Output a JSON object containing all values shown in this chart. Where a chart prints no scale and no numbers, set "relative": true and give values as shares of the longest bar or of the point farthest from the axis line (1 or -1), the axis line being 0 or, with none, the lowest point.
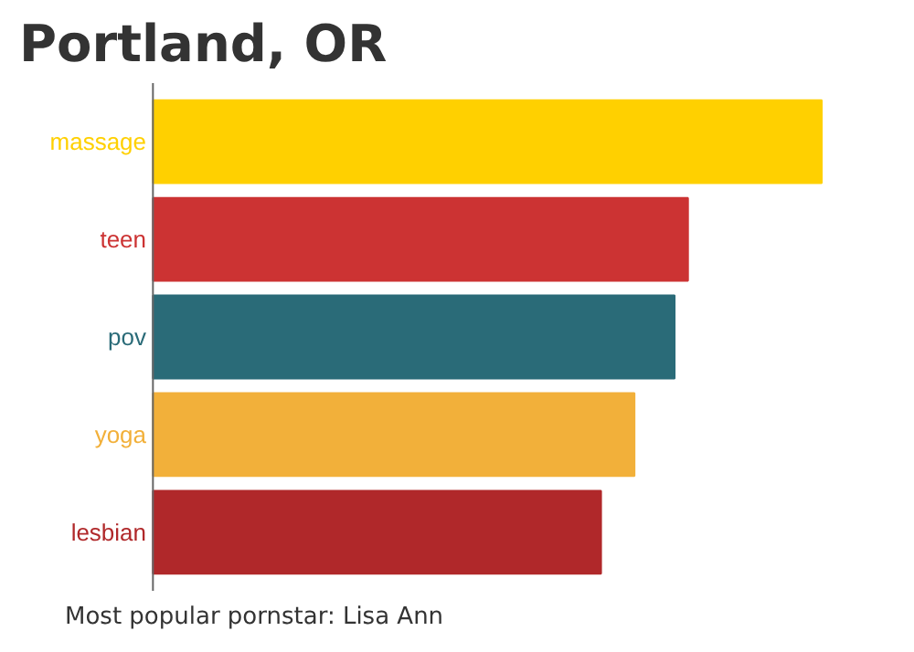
{
  "chart_data": {
    "type": "bar",
    "orientation": "horizontal",
    "relative": true,
    "title": "Portland, OR",
    "categories": [
      "massage",
      "teen",
      "pov",
      "yoga",
      "lesbian"
    ],
    "values": [
      1,
      0.8,
      0.78,
      0.72,
      0.67
    ],
    "colors": [
      "#ffd000",
      "#cc3333",
      "#2a6b78",
      "#f2b03a",
      "#b0282a"
    ],
    "annotations": [
      "Most popular pornstar: Lisa Ann"
    ]
  }
}
